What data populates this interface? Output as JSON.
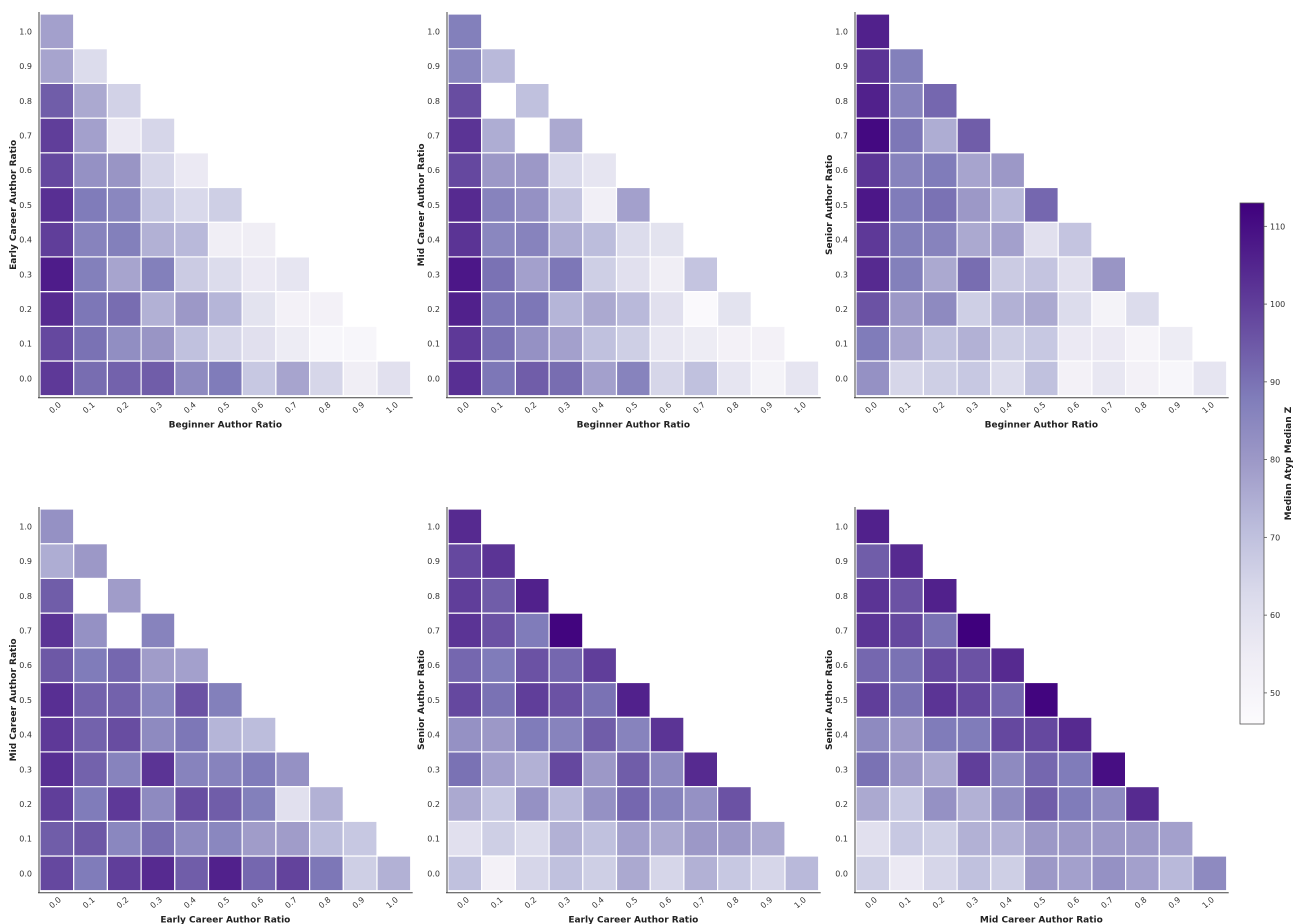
{
  "chart_data": [
    {
      "type": "heatmap",
      "xlabel": "Beginner Author Ratio",
      "ylabel": "Early Career Author Ratio",
      "x": [
        "0.0",
        "0.1",
        "0.2",
        "0.3",
        "0.4",
        "0.5",
        "0.6",
        "0.7",
        "0.8",
        "0.9",
        "1.0"
      ],
      "y": [
        "0.0",
        "0.1",
        "0.2",
        "0.3",
        "0.4",
        "0.5",
        "0.6",
        "0.7",
        "0.8",
        "0.9",
        "1.0"
      ],
      "values": [
        [
          101,
          91,
          93,
          94,
          84,
          88,
          68,
          77,
          64,
          54,
          60
        ],
        [
          98,
          90,
          83,
          81,
          70,
          64,
          60,
          55,
          49,
          49,
          null
        ],
        [
          104,
          89,
          91,
          74,
          80,
          73,
          59,
          52,
          52,
          null,
          null
        ],
        [
          107,
          87,
          77,
          87,
          67,
          62,
          56,
          58,
          null,
          null,
          null
        ],
        [
          100,
          86,
          87,
          74,
          72,
          54,
          54,
          null,
          null,
          null,
          null
        ],
        [
          103,
          88,
          85,
          68,
          63,
          66,
          null,
          null,
          null,
          null,
          null
        ],
        [
          98,
          82,
          81,
          64,
          56,
          null,
          null,
          null,
          null,
          null,
          null
        ],
        [
          100,
          78,
          56,
          64,
          null,
          null,
          null,
          null,
          null,
          null,
          null
        ],
        [
          94,
          76,
          65,
          null,
          null,
          null,
          null,
          null,
          null,
          null,
          null
        ],
        [
          77,
          62,
          null,
          null,
          null,
          null,
          null,
          null,
          null,
          null,
          null
        ],
        [
          78,
          null,
          null,
          null,
          null,
          null,
          null,
          null,
          null,
          null,
          null
        ]
      ]
    },
    {
      "type": "heatmap",
      "xlabel": "Beginner Author Ratio",
      "ylabel": "Mid Career Author Ratio",
      "x": [
        "0.0",
        "0.1",
        "0.2",
        "0.3",
        "0.4",
        "0.5",
        "0.6",
        "0.7",
        "0.8",
        "0.9",
        "1.0"
      ],
      "y": [
        "0.0",
        "0.1",
        "0.2",
        "0.3",
        "0.4",
        "0.5",
        "0.6",
        "0.7",
        "0.8",
        "0.9",
        "1.0"
      ],
      "values": [
        [
          103,
          89,
          94,
          91,
          78,
          86,
          64,
          70,
          58,
          51,
          58
        ],
        [
          101,
          90,
          82,
          78,
          70,
          66,
          57,
          55,
          52,
          52,
          null
        ],
        [
          106,
          89,
          89,
          73,
          76,
          72,
          60,
          47,
          59,
          null,
          null
        ],
        [
          108,
          90,
          78,
          89,
          66,
          60,
          54,
          69,
          null,
          null,
          null
        ],
        [
          102,
          85,
          86,
          75,
          71,
          62,
          59,
          null,
          null,
          null,
          null
        ],
        [
          104,
          86,
          82,
          69,
          53,
          78,
          null,
          null,
          null,
          null,
          null
        ],
        [
          98,
          80,
          80,
          63,
          58,
          null,
          null,
          null,
          null,
          null,
          null
        ],
        [
          102,
          75,
          null,
          76,
          null,
          null,
          null,
          null,
          null,
          null,
          null
        ],
        [
          97,
          null,
          70,
          null,
          null,
          null,
          null,
          null,
          null,
          null,
          null
        ],
        [
          85,
          72,
          null,
          null,
          null,
          null,
          null,
          null,
          null,
          null,
          null
        ],
        [
          87,
          null,
          null,
          null,
          null,
          null,
          null,
          null,
          null,
          null,
          null
        ]
      ]
    },
    {
      "type": "heatmap",
      "xlabel": "Beginner Author Ratio",
      "ylabel": "Senior Author Ratio",
      "x": [
        "0.0",
        "0.1",
        "0.2",
        "0.3",
        "0.4",
        "0.5",
        "0.6",
        "0.7",
        "0.8",
        "0.9",
        "1.0"
      ],
      "y": [
        "0.0",
        "0.1",
        "0.2",
        "0.3",
        "0.4",
        "0.5",
        "0.6",
        "0.7",
        "0.8",
        "0.9",
        "1.0"
      ],
      "values": [
        [
          82,
          64,
          66,
          68,
          62,
          70,
          52,
          57,
          52,
          49,
          58
        ],
        [
          88,
          77,
          70,
          74,
          66,
          68,
          56,
          56,
          50,
          55,
          null
        ],
        [
          96,
          80,
          84,
          66,
          74,
          76,
          62,
          51,
          62,
          null,
          null
        ],
        [
          104,
          87,
          76,
          91,
          67,
          69,
          60,
          81,
          null,
          null,
          null
        ],
        [
          101,
          87,
          86,
          76,
          78,
          60,
          69,
          null,
          null,
          null,
          null
        ],
        [
          108,
          88,
          90,
          80,
          72,
          92,
          null,
          null,
          null,
          null,
          null
        ],
        [
          102,
          86,
          88,
          77,
          80,
          null,
          null,
          null,
          null,
          null,
          null
        ],
        [
          111,
          89,
          75,
          94,
          null,
          null,
          null,
          null,
          null,
          null,
          null
        ],
        [
          106,
          86,
          92,
          null,
          null,
          null,
          null,
          null,
          null,
          null,
          null
        ],
        [
          102,
          87,
          null,
          null,
          null,
          null,
          null,
          null,
          null,
          null,
          null
        ],
        [
          106,
          null,
          null,
          null,
          null,
          null,
          null,
          null,
          null,
          null,
          null
        ]
      ]
    },
    {
      "type": "heatmap",
      "xlabel": "Early Career Author Ratio",
      "ylabel": "Mid Career Author Ratio",
      "x": [
        "0.0",
        "0.1",
        "0.2",
        "0.3",
        "0.4",
        "0.5",
        "0.6",
        "0.7",
        "0.8",
        "0.9",
        "1.0"
      ],
      "y": [
        "0.0",
        "0.1",
        "0.2",
        "0.3",
        "0.4",
        "0.5",
        "0.6",
        "0.7",
        "0.8",
        "0.9",
        "1.0"
      ],
      "values": [
        [
          98,
          88,
          100,
          104,
          94,
          106,
          92,
          99,
          89,
          66,
          74
        ],
        [
          94,
          95,
          85,
          91,
          84,
          85,
          79,
          79,
          71,
          68,
          null
        ],
        [
          100,
          88,
          101,
          84,
          97,
          94,
          87,
          60,
          74,
          null,
          null
        ],
        [
          103,
          93,
          86,
          102,
          86,
          86,
          88,
          82,
          null,
          null,
          null
        ],
        [
          101,
          93,
          97,
          84,
          89,
          73,
          71,
          null,
          null,
          null,
          null
        ],
        [
          103,
          93,
          93,
          85,
          96,
          87,
          null,
          null,
          null,
          null,
          null
        ],
        [
          95,
          88,
          92,
          79,
          78,
          null,
          null,
          null,
          null,
          null,
          null
        ],
        [
          102,
          82,
          null,
          86,
          null,
          null,
          null,
          null,
          null,
          null,
          null
        ],
        [
          94,
          null,
          79,
          null,
          null,
          null,
          null,
          null,
          null,
          null,
          null
        ],
        [
          75,
          80,
          null,
          null,
          null,
          null,
          null,
          null,
          null,
          null,
          null
        ],
        [
          82,
          null,
          null,
          null,
          null,
          null,
          null,
          null,
          null,
          null,
          null
        ]
      ]
    },
    {
      "type": "heatmap",
      "xlabel": "Early Career Author Ratio",
      "ylabel": "Senior Author Ratio",
      "x": [
        "0.0",
        "0.1",
        "0.2",
        "0.3",
        "0.4",
        "0.5",
        "0.6",
        "0.7",
        "0.8",
        "0.9",
        "1.0"
      ],
      "y": [
        "0.0",
        "0.1",
        "0.2",
        "0.3",
        "0.4",
        "0.5",
        "0.6",
        "0.7",
        "0.8",
        "0.9",
        "1.0"
      ],
      "values": [
        [
          70,
          52,
          64,
          70,
          66,
          76,
          64,
          74,
          68,
          64,
          72
        ],
        [
          60,
          66,
          62,
          74,
          70,
          78,
          76,
          80,
          80,
          76,
          null
        ],
        [
          76,
          68,
          82,
          72,
          82,
          92,
          86,
          82,
          96,
          null,
          null
        ],
        [
          90,
          78,
          74,
          98,
          80,
          94,
          84,
          104,
          null,
          null,
          null
        ],
        [
          82,
          80,
          88,
          86,
          94,
          86,
          102,
          null,
          null,
          null,
          null
        ],
        [
          98,
          90,
          100,
          96,
          90,
          106,
          null,
          null,
          null,
          null,
          null
        ],
        [
          92,
          88,
          96,
          92,
          100,
          null,
          null,
          null,
          null,
          null,
          null
        ],
        [
          102,
          96,
          88,
          112,
          null,
          null,
          null,
          null,
          null,
          null,
          null
        ],
        [
          100,
          94,
          106,
          null,
          null,
          null,
          null,
          null,
          null,
          null,
          null
        ],
        [
          98,
          102,
          null,
          null,
          null,
          null,
          null,
          null,
          null,
          null,
          null
        ],
        [
          104,
          null,
          null,
          null,
          null,
          null,
          null,
          null,
          null,
          null,
          null
        ]
      ]
    },
    {
      "type": "heatmap",
      "xlabel": "Mid Career Author Ratio",
      "ylabel": "Senior Author Ratio",
      "x": [
        "0.0",
        "0.1",
        "0.2",
        "0.3",
        "0.4",
        "0.5",
        "0.6",
        "0.7",
        "0.8",
        "0.9",
        "1.0"
      ],
      "y": [
        "0.0",
        "0.1",
        "0.2",
        "0.3",
        "0.4",
        "0.5",
        "0.6",
        "0.7",
        "0.8",
        "0.9",
        "1.0"
      ],
      "values": [
        [
          66,
          56,
          64,
          70,
          66,
          80,
          78,
          82,
          78,
          72,
          84
        ],
        [
          60,
          68,
          66,
          74,
          74,
          80,
          80,
          80,
          80,
          78,
          null
        ],
        [
          76,
          68,
          82,
          74,
          84,
          94,
          88,
          84,
          104,
          null,
          null
        ],
        [
          90,
          80,
          76,
          100,
          84,
          92,
          88,
          110,
          null,
          null,
          null
        ],
        [
          84,
          80,
          88,
          88,
          98,
          98,
          104,
          null,
          null,
          null,
          null
        ],
        [
          100,
          90,
          102,
          98,
          92,
          112,
          null,
          null,
          null,
          null,
          null
        ],
        [
          92,
          90,
          98,
          96,
          104,
          null,
          null,
          null,
          null,
          null,
          null
        ],
        [
          102,
          98,
          90,
          114,
          null,
          null,
          null,
          null,
          null,
          null,
          null
        ],
        [
          102,
          96,
          106,
          null,
          null,
          null,
          null,
          null,
          null,
          null,
          null
        ],
        [
          94,
          104,
          null,
          null,
          null,
          null,
          null,
          null,
          null,
          null,
          null
        ],
        [
          106,
          null,
          null,
          null,
          null,
          null,
          null,
          null,
          null,
          null,
          null
        ]
      ]
    }
  ],
  "colorbar": {
    "label": "Median Atyp Median Z",
    "min": 46,
    "max": 113,
    "ticks": [
      50,
      60,
      70,
      80,
      90,
      100,
      110
    ],
    "color_low": "#fcfbfd",
    "color_high": "#3f007d"
  }
}
